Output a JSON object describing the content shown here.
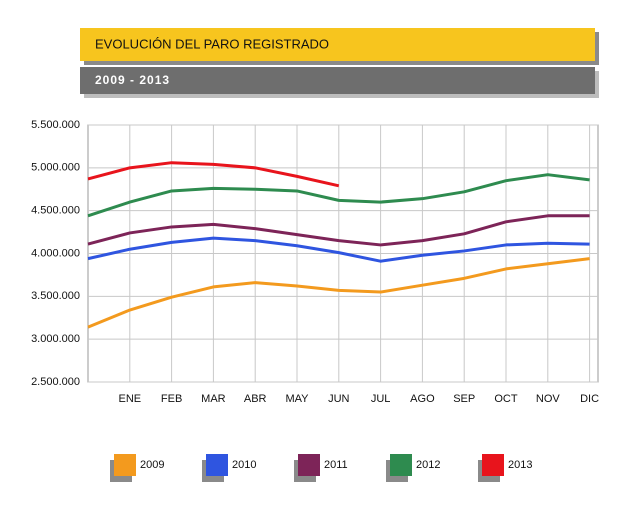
{
  "chart_data": {
    "type": "line",
    "title": "EVOLUCIÓN DEL PARO REGISTRADO",
    "subtitle": "2009 - 2013",
    "categories": [
      null,
      "ENE",
      "FEB",
      "MAR",
      "ABR",
      "MAY",
      "JUN",
      "JUL",
      "AGO",
      "SEP",
      "OCT",
      "NOV",
      "DIC"
    ],
    "series": [
      {
        "name": "2009",
        "color": "#f39a1e",
        "values": [
          3140000,
          3340000,
          3490000,
          3610000,
          3660000,
          3620000,
          3570000,
          3550000,
          3630000,
          3710000,
          3820000,
          3880000,
          3940000
        ]
      },
      {
        "name": "2010",
        "color": "#2f55e0",
        "values": [
          3940000,
          4050000,
          4130000,
          4180000,
          4150000,
          4090000,
          4010000,
          3910000,
          3980000,
          4030000,
          4100000,
          4120000,
          4110000
        ]
      },
      {
        "name": "2011",
        "color": "#7d2458",
        "values": [
          4110000,
          4240000,
          4310000,
          4340000,
          4290000,
          4220000,
          4150000,
          4100000,
          4150000,
          4230000,
          4370000,
          4440000,
          4440000
        ]
      },
      {
        "name": "2012",
        "color": "#2e8b4f",
        "values": [
          4440000,
          4600000,
          4730000,
          4760000,
          4750000,
          4730000,
          4620000,
          4600000,
          4640000,
          4720000,
          4850000,
          4920000,
          4860000
        ]
      },
      {
        "name": "2013",
        "color": "#e8141c",
        "values": [
          4870000,
          5000000,
          5060000,
          5040000,
          5000000,
          4900000,
          4790000,
          null,
          null,
          null,
          null,
          null,
          null
        ]
      }
    ],
    "ylim": [
      2500000,
      5500000
    ],
    "yticks": [
      {
        "value": 2500000,
        "label": "2.500.000"
      },
      {
        "value": 3000000,
        "label": "3.000.000"
      },
      {
        "value": 3500000,
        "label": "3.500.000"
      },
      {
        "value": 4000000,
        "label": "4.000.000"
      },
      {
        "value": 4500000,
        "label": "4.500.000"
      },
      {
        "value": 5000000,
        "label": "5.000.000"
      },
      {
        "value": 5500000,
        "label": "5.500.000"
      }
    ],
    "grid": true
  }
}
